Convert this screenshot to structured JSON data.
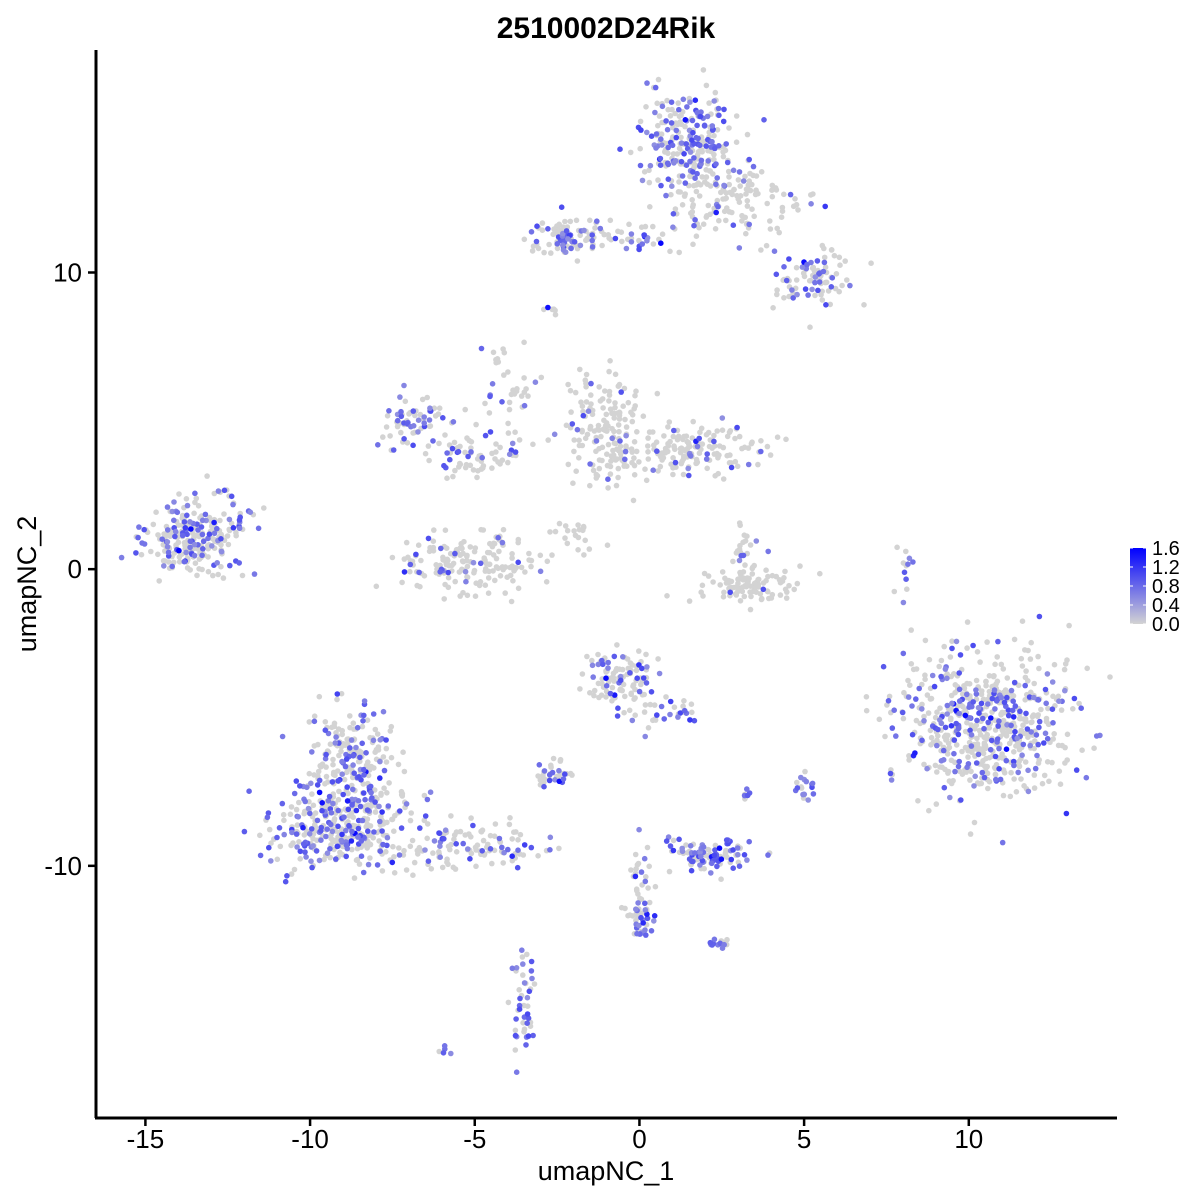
{
  "chart_data": {
    "type": "scatter",
    "title": "2510002D24Rik",
    "xlabel": "umapNC_1",
    "ylabel": "umapNC_2",
    "xlim": [
      -16.5,
      14.5
    ],
    "ylim": [
      -18.5,
      17.5
    ],
    "x_ticks": [
      -15,
      -10,
      -5,
      0,
      5,
      10
    ],
    "x_tick_labels": [
      "-15",
      "-10",
      "-5",
      "0",
      "5",
      "10"
    ],
    "y_ticks": [
      -10,
      0,
      10
    ],
    "y_tick_labels": [
      "-10",
      "0",
      "10"
    ],
    "grid": false,
    "legend_position": "right",
    "colorbar": {
      "min": 0.0,
      "max": 1.6,
      "ticks": [
        0.0,
        0.4,
        0.8,
        1.2,
        1.6
      ],
      "tick_labels": [
        "0.0",
        "0.4",
        "0.8",
        "1.2",
        "1.6"
      ],
      "low_color": "#d3d3d3",
      "high_color": "#0000ff"
    },
    "clusters": [
      {
        "cx": 1.5,
        "cy": 14.3,
        "sx": 0.7,
        "sy": 0.9,
        "n": 260,
        "expr_frac": 0.35
      },
      {
        "cx": 3.0,
        "cy": 12.3,
        "sx": 1.0,
        "sy": 0.6,
        "n": 120,
        "expr_frac": 0.15
      },
      {
        "cx": 5.3,
        "cy": 9.8,
        "sx": 0.6,
        "sy": 0.5,
        "n": 90,
        "expr_frac": 0.3
      },
      {
        "cx": -2.3,
        "cy": 11.3,
        "sx": 0.5,
        "sy": 0.4,
        "n": 70,
        "expr_frac": 0.25
      },
      {
        "cx": -0.5,
        "cy": 11.2,
        "sx": 1.2,
        "sy": 0.25,
        "n": 60,
        "expr_frac": 0.3
      },
      {
        "cx": -7.0,
        "cy": 5.0,
        "sx": 0.5,
        "sy": 0.5,
        "n": 60,
        "expr_frac": 0.45
      },
      {
        "cx": -5.2,
        "cy": 3.8,
        "sx": 0.9,
        "sy": 0.4,
        "n": 70,
        "expr_frac": 0.3
      },
      {
        "cx": -5.0,
        "cy": 0.2,
        "sx": 1.1,
        "sy": 0.5,
        "n": 170,
        "expr_frac": 0.15
      },
      {
        "cx": -1.0,
        "cy": 4.8,
        "sx": 0.6,
        "sy": 0.9,
        "n": 150,
        "expr_frac": 0.12
      },
      {
        "cx": 1.5,
        "cy": 4.0,
        "sx": 1.2,
        "sy": 0.4,
        "n": 170,
        "expr_frac": 0.15
      },
      {
        "cx": 3.4,
        "cy": -0.6,
        "sx": 0.8,
        "sy": 0.3,
        "n": 90,
        "expr_frac": 0.05
      },
      {
        "cx": 3.2,
        "cy": 0.5,
        "sx": 0.25,
        "sy": 0.6,
        "n": 30,
        "expr_frac": 0.15
      },
      {
        "cx": -13.6,
        "cy": 1.0,
        "sx": 0.7,
        "sy": 0.6,
        "n": 230,
        "expr_frac": 0.35
      },
      {
        "cx": -12.3,
        "cy": 1.8,
        "sx": 0.4,
        "sy": 0.6,
        "n": 30,
        "expr_frac": 0.3
      },
      {
        "cx": 10.5,
        "cy": -5.2,
        "sx": 1.3,
        "sy": 1.2,
        "n": 620,
        "expr_frac": 0.3
      },
      {
        "cx": -0.6,
        "cy": -3.7,
        "sx": 0.5,
        "sy": 0.5,
        "n": 110,
        "expr_frac": 0.2
      },
      {
        "cx": 0.8,
        "cy": -4.8,
        "sx": 0.6,
        "sy": 0.3,
        "n": 30,
        "expr_frac": 0.3
      },
      {
        "cx": -8.8,
        "cy": -6.5,
        "sx": 0.7,
        "sy": 0.9,
        "n": 230,
        "expr_frac": 0.35
      },
      {
        "cx": -9.0,
        "cy": -8.8,
        "sx": 1.1,
        "sy": 0.7,
        "n": 330,
        "expr_frac": 0.35
      },
      {
        "cx": -5.0,
        "cy": -9.4,
        "sx": 1.0,
        "sy": 0.4,
        "n": 110,
        "expr_frac": 0.3
      },
      {
        "cx": -2.6,
        "cy": -6.9,
        "sx": 0.3,
        "sy": 0.2,
        "n": 35,
        "expr_frac": 0.35
      },
      {
        "cx": 2.1,
        "cy": -9.6,
        "sx": 0.6,
        "sy": 0.3,
        "n": 100,
        "expr_frac": 0.55
      },
      {
        "cx": 0.0,
        "cy": -11.8,
        "sx": 0.2,
        "sy": 0.4,
        "n": 40,
        "expr_frac": 0.45
      },
      {
        "cx": 0.0,
        "cy": -10.3,
        "sx": 0.15,
        "sy": 0.8,
        "n": 25,
        "expr_frac": 0.3
      },
      {
        "cx": 2.4,
        "cy": -12.6,
        "sx": 0.2,
        "sy": 0.2,
        "n": 15,
        "expr_frac": 0.5
      },
      {
        "cx": -3.5,
        "cy": -14.8,
        "sx": 0.2,
        "sy": 0.8,
        "n": 45,
        "expr_frac": 0.55
      },
      {
        "cx": 5.0,
        "cy": -7.4,
        "sx": 0.2,
        "sy": 0.3,
        "n": 18,
        "expr_frac": 0.7
      },
      {
        "cx": 3.3,
        "cy": -7.6,
        "sx": 0.1,
        "sy": 0.1,
        "n": 6,
        "expr_frac": 0.6
      },
      {
        "cx": 8.0,
        "cy": -0.2,
        "sx": 0.15,
        "sy": 0.5,
        "n": 12,
        "expr_frac": 0.4
      },
      {
        "cx": -2.7,
        "cy": 8.8,
        "sx": 0.15,
        "sy": 0.1,
        "n": 6,
        "expr_frac": 0.4
      },
      {
        "cx": -6.0,
        "cy": -16.2,
        "sx": 0.15,
        "sy": 0.1,
        "n": 5,
        "expr_frac": 0.6
      },
      {
        "cx": -4.5,
        "cy": 6.5,
        "sx": 0.3,
        "sy": 0.8,
        "n": 18,
        "expr_frac": 0.3
      },
      {
        "cx": -3.7,
        "cy": 5.8,
        "sx": 0.25,
        "sy": 0.7,
        "n": 20,
        "expr_frac": 0.1
      },
      {
        "cx": -2.0,
        "cy": 1.2,
        "sx": 0.5,
        "sy": 0.3,
        "n": 20,
        "expr_frac": 0.0
      }
    ]
  }
}
